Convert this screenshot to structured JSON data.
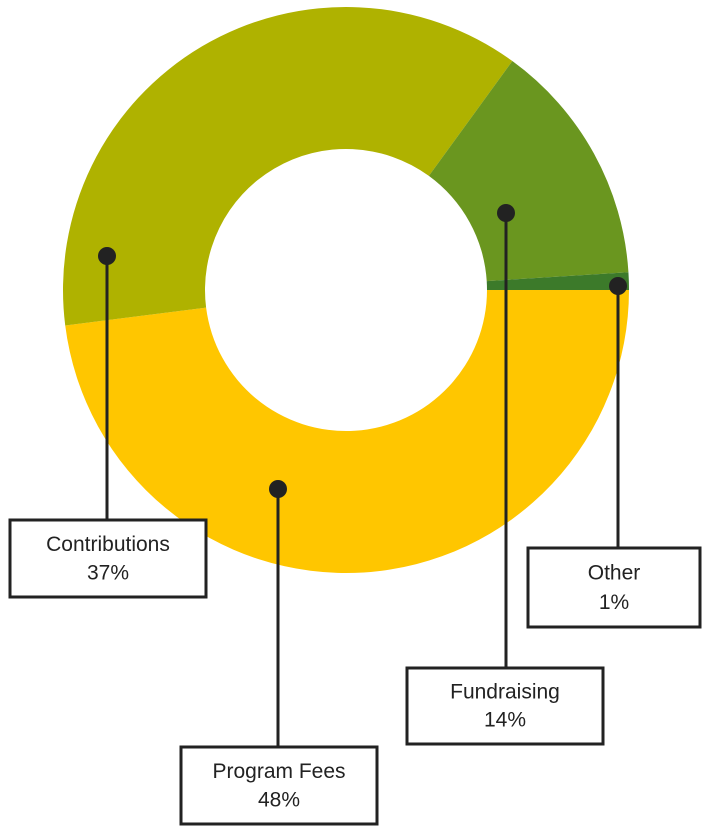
{
  "chart_data": {
    "type": "donut",
    "categories": [
      "Program Fees",
      "Contributions",
      "Fundraising",
      "Other"
    ],
    "values": [
      48,
      37,
      14,
      1
    ],
    "value_labels": [
      "48%",
      "37%",
      "14%",
      "1%"
    ],
    "colors": [
      "#ffc600",
      "#afb200",
      "#6a961f",
      "#3c7a2a"
    ]
  }
}
